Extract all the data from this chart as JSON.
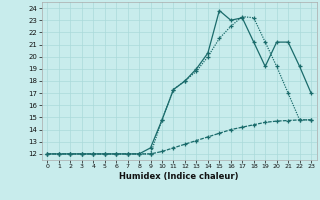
{
  "xlabel": "Humidex (Indice chaleur)",
  "bg_color": "#c8ecec",
  "grid_color": "#aadada",
  "line_color": "#1a6b6b",
  "xlim": [
    -0.5,
    23.5
  ],
  "ylim": [
    11.5,
    24.5
  ],
  "yticks": [
    12,
    13,
    14,
    15,
    16,
    17,
    18,
    19,
    20,
    21,
    22,
    23,
    24
  ],
  "xticks": [
    0,
    1,
    2,
    3,
    4,
    5,
    6,
    7,
    8,
    9,
    10,
    11,
    12,
    13,
    14,
    15,
    16,
    17,
    18,
    19,
    20,
    21,
    22,
    23
  ],
  "line1_x": [
    0,
    1,
    2,
    3,
    4,
    5,
    6,
    7,
    8,
    9,
    10,
    11,
    12,
    13,
    14,
    15,
    16,
    17,
    18,
    19,
    20,
    21,
    22,
    23
  ],
  "line1_y": [
    12,
    12,
    12,
    12,
    12,
    12,
    12,
    12,
    12,
    12,
    12.2,
    12.5,
    12.8,
    13.1,
    13.4,
    13.7,
    14.0,
    14.2,
    14.4,
    14.6,
    14.7,
    14.75,
    14.8,
    14.8
  ],
  "line2_x": [
    0,
    1,
    2,
    3,
    4,
    5,
    6,
    7,
    8,
    9,
    10,
    11,
    12,
    13,
    14,
    15,
    16,
    17,
    18,
    19,
    20,
    21,
    22,
    23
  ],
  "line2_y": [
    12,
    12,
    12,
    12,
    12,
    12,
    12,
    12,
    12,
    12.5,
    14.8,
    17.3,
    18.0,
    19.0,
    20.3,
    23.8,
    23.0,
    23.2,
    21.2,
    19.2,
    21.2,
    21.2,
    19.2,
    17.0
  ],
  "line3_x": [
    0,
    1,
    2,
    3,
    4,
    5,
    6,
    7,
    8,
    9,
    10,
    11,
    12,
    13,
    14,
    15,
    16,
    17,
    18,
    19,
    20,
    21,
    22,
    23
  ],
  "line3_y": [
    12,
    12,
    12,
    12,
    12,
    12,
    12,
    12,
    12,
    12,
    14.8,
    17.3,
    18.0,
    18.8,
    20.0,
    21.5,
    22.5,
    23.3,
    23.2,
    21.2,
    19.2,
    17.0,
    14.8,
    14.8
  ]
}
